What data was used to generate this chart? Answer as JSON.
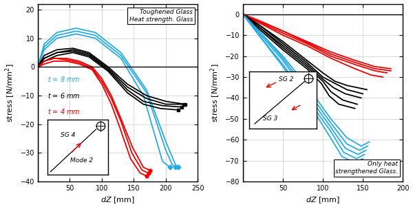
{
  "left": {
    "xlim": [
      0,
      250
    ],
    "ylim": [
      -40,
      22
    ],
    "xticks": [
      50,
      100,
      150,
      200,
      250
    ],
    "yticks": [
      -40,
      -30,
      -20,
      -10,
      0,
      10,
      20
    ],
    "xlabel": "dZ [mm]",
    "ylabel": "stress [N/mm²]",
    "text_box": "Toughened Glass\nHeat strength. Glass",
    "cyan_label": "t = 8 mm",
    "black_label": "t = 6 mm",
    "red_label": "t = 4 mm"
  },
  "right": {
    "xlim": [
      0,
      200
    ],
    "ylim": [
      -80,
      5
    ],
    "xticks": [
      50,
      100,
      150,
      200
    ],
    "yticks": [
      -80,
      -70,
      -60,
      -50,
      -40,
      -30,
      -20,
      -10,
      0
    ],
    "xlabel": "dZ [mm]",
    "ylabel": "stress [N/mm²]",
    "text_box": "Only heat\nstrengthened Glass."
  },
  "colors": {
    "cyan": "#29ABE2",
    "black": "#000000",
    "red": "#EE0000"
  },
  "cyan_left": [
    [
      [
        0,
        10,
        30,
        60,
        90,
        130,
        170,
        200,
        215,
        220
      ],
      [
        0,
        8,
        12,
        13.5,
        12,
        5,
        -8,
        -26,
        -34,
        -35
      ]
    ],
    [
      [
        0,
        10,
        30,
        60,
        90,
        130,
        170,
        200,
        210,
        215
      ],
      [
        0,
        7,
        11,
        12.5,
        11,
        4,
        -9,
        -29,
        -34,
        -35
      ]
    ],
    [
      [
        0,
        10,
        30,
        60,
        90,
        130,
        165,
        195,
        207
      ],
      [
        0,
        6,
        10,
        11.5,
        10,
        3,
        -10,
        -33,
        -35
      ]
    ]
  ],
  "black_left": [
    [
      [
        0,
        10,
        30,
        55,
        80,
        110,
        140,
        170,
        200,
        230
      ],
      [
        0,
        4,
        6,
        6.5,
        5,
        0,
        -6,
        -10,
        -12,
        -13
      ]
    ],
    [
      [
        0,
        10,
        30,
        55,
        80,
        110,
        140,
        170,
        200,
        228
      ],
      [
        0,
        3,
        5,
        6,
        4.5,
        -0.5,
        -7,
        -11,
        -13,
        -13
      ]
    ],
    [
      [
        0,
        10,
        30,
        55,
        80,
        110,
        140,
        165,
        195,
        225
      ],
      [
        0,
        3,
        5,
        5.5,
        4,
        -1,
        -8,
        -12,
        -13.5,
        -14
      ]
    ],
    [
      [
        0,
        10,
        30,
        55,
        80,
        110,
        140,
        165,
        192,
        220
      ],
      [
        0,
        2,
        4,
        5,
        3.5,
        -1.5,
        -9,
        -13,
        -14.5,
        -15
      ]
    ]
  ],
  "red_left": [
    [
      [
        0,
        10,
        25,
        45,
        65,
        85,
        100,
        115,
        130,
        148,
        165,
        175
      ],
      [
        0,
        2,
        3,
        3,
        2,
        0,
        -4,
        -10,
        -18,
        -28,
        -35,
        -36
      ]
    ],
    [
      [
        0,
        10,
        25,
        45,
        65,
        85,
        100,
        115,
        130,
        147,
        163,
        173
      ],
      [
        0,
        2,
        3,
        2.5,
        1.5,
        -0.5,
        -5,
        -11,
        -19,
        -30,
        -36,
        -37
      ]
    ],
    [
      [
        0,
        10,
        25,
        45,
        65,
        85,
        100,
        115,
        128,
        145,
        160,
        170
      ],
      [
        0,
        1,
        2,
        2,
        1,
        -1,
        -6,
        -13,
        -21,
        -32,
        -37,
        -38
      ]
    ]
  ],
  "red_right": [
    [
      [
        0,
        20,
        50,
        80,
        110,
        140,
        165,
        185
      ],
      [
        0,
        -3,
        -8,
        -13,
        -18,
        -22,
        -25,
        -26
      ]
    ],
    [
      [
        0,
        20,
        50,
        80,
        110,
        140,
        165,
        185
      ],
      [
        0,
        -3,
        -8,
        -13.5,
        -19,
        -23,
        -26,
        -27
      ]
    ],
    [
      [
        0,
        20,
        50,
        80,
        110,
        140,
        165,
        180
      ],
      [
        0,
        -3.5,
        -9,
        -14,
        -20,
        -24,
        -27,
        -28
      ]
    ],
    [
      [
        0,
        20,
        50,
        80,
        110,
        140,
        160,
        175
      ],
      [
        0,
        -4,
        -10,
        -15,
        -21,
        -26,
        -29,
        -30
      ]
    ]
  ],
  "black_right": [
    [
      [
        0,
        20,
        50,
        80,
        100,
        115,
        130,
        155
      ],
      [
        0,
        -5,
        -13,
        -22,
        -28,
        -32,
        -34,
        -36
      ]
    ],
    [
      [
        0,
        20,
        50,
        80,
        100,
        115,
        130,
        150
      ],
      [
        0,
        -5,
        -14,
        -23,
        -30,
        -33,
        -36,
        -38
      ]
    ],
    [
      [
        0,
        20,
        50,
        80,
        100,
        113,
        128,
        148
      ],
      [
        0,
        -6,
        -15,
        -24,
        -31,
        -35,
        -38,
        -40
      ]
    ],
    [
      [
        0,
        20,
        50,
        80,
        100,
        110,
        125,
        143
      ],
      [
        0,
        -6,
        -16,
        -25,
        -32,
        -37,
        -41,
        -43
      ]
    ],
    [
      [
        0,
        20,
        50,
        80,
        98,
        108,
        120,
        140
      ],
      [
        0,
        -7,
        -17,
        -26,
        -33,
        -39,
        -43,
        -45
      ]
    ]
  ],
  "cyan_right": [
    [
      [
        0,
        20,
        50,
        80,
        110,
        130,
        148,
        158
      ],
      [
        0,
        -8,
        -20,
        -34,
        -50,
        -59,
        -63,
        -61
      ]
    ],
    [
      [
        0,
        20,
        50,
        80,
        110,
        130,
        146,
        156
      ],
      [
        0,
        -8,
        -21,
        -36,
        -52,
        -62,
        -65,
        -63
      ]
    ],
    [
      [
        0,
        20,
        50,
        80,
        110,
        128,
        144,
        154
      ],
      [
        0,
        -9,
        -22,
        -38,
        -54,
        -64,
        -67,
        -65
      ]
    ],
    [
      [
        0,
        20,
        50,
        80,
        110,
        126,
        142,
        152
      ],
      [
        0,
        -10,
        -24,
        -40,
        -56,
        -66,
        -69,
        -67
      ]
    ],
    [
      [
        0,
        20,
        50,
        80,
        108,
        124,
        140,
        150
      ],
      [
        0,
        -10,
        -25,
        -41,
        -58,
        -68,
        -71,
        -69
      ]
    ]
  ]
}
